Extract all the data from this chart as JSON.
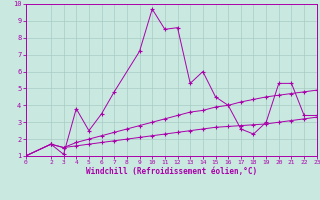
{
  "xlabel": "Windchill (Refroidissement éolien,°C)",
  "xlim": [
    0,
    23
  ],
  "ylim": [
    1,
    10
  ],
  "xticks": [
    0,
    2,
    3,
    4,
    5,
    6,
    7,
    8,
    9,
    10,
    11,
    12,
    13,
    14,
    15,
    16,
    17,
    18,
    19,
    20,
    21,
    22,
    23
  ],
  "yticks": [
    1,
    2,
    3,
    4,
    5,
    6,
    7,
    8,
    9,
    10
  ],
  "bg_color": "#c8e8e0",
  "grid_color": "#a8ccc4",
  "line_color": "#aa00aa",
  "line1_x": [
    0,
    2,
    3,
    4,
    5,
    6,
    7,
    9,
    10,
    11,
    12,
    13,
    14,
    15,
    16,
    17,
    18,
    19,
    20,
    21,
    22,
    23
  ],
  "line1_y": [
    1.0,
    1.7,
    1.1,
    3.8,
    2.5,
    3.5,
    4.8,
    7.2,
    9.7,
    8.5,
    8.6,
    5.3,
    6.0,
    4.5,
    4.0,
    2.6,
    2.3,
    3.0,
    5.3,
    5.3,
    3.4,
    3.4
  ],
  "line2_x": [
    0,
    2,
    3,
    4,
    5,
    6,
    7,
    8,
    9,
    10,
    11,
    12,
    13,
    14,
    15,
    16,
    17,
    18,
    19,
    20,
    21,
    22,
    23
  ],
  "line2_y": [
    1.0,
    1.7,
    1.5,
    1.6,
    1.7,
    1.8,
    1.9,
    2.0,
    2.1,
    2.2,
    2.3,
    2.4,
    2.5,
    2.6,
    2.7,
    2.75,
    2.8,
    2.85,
    2.9,
    3.0,
    3.1,
    3.2,
    3.3
  ],
  "line3_x": [
    0,
    2,
    3,
    4,
    5,
    6,
    7,
    8,
    9,
    10,
    11,
    12,
    13,
    14,
    15,
    16,
    17,
    18,
    19,
    20,
    21,
    22,
    23
  ],
  "line3_y": [
    1.0,
    1.7,
    1.5,
    1.8,
    2.0,
    2.2,
    2.4,
    2.6,
    2.8,
    3.0,
    3.2,
    3.4,
    3.6,
    3.7,
    3.9,
    4.0,
    4.2,
    4.35,
    4.5,
    4.6,
    4.7,
    4.8,
    4.9
  ]
}
